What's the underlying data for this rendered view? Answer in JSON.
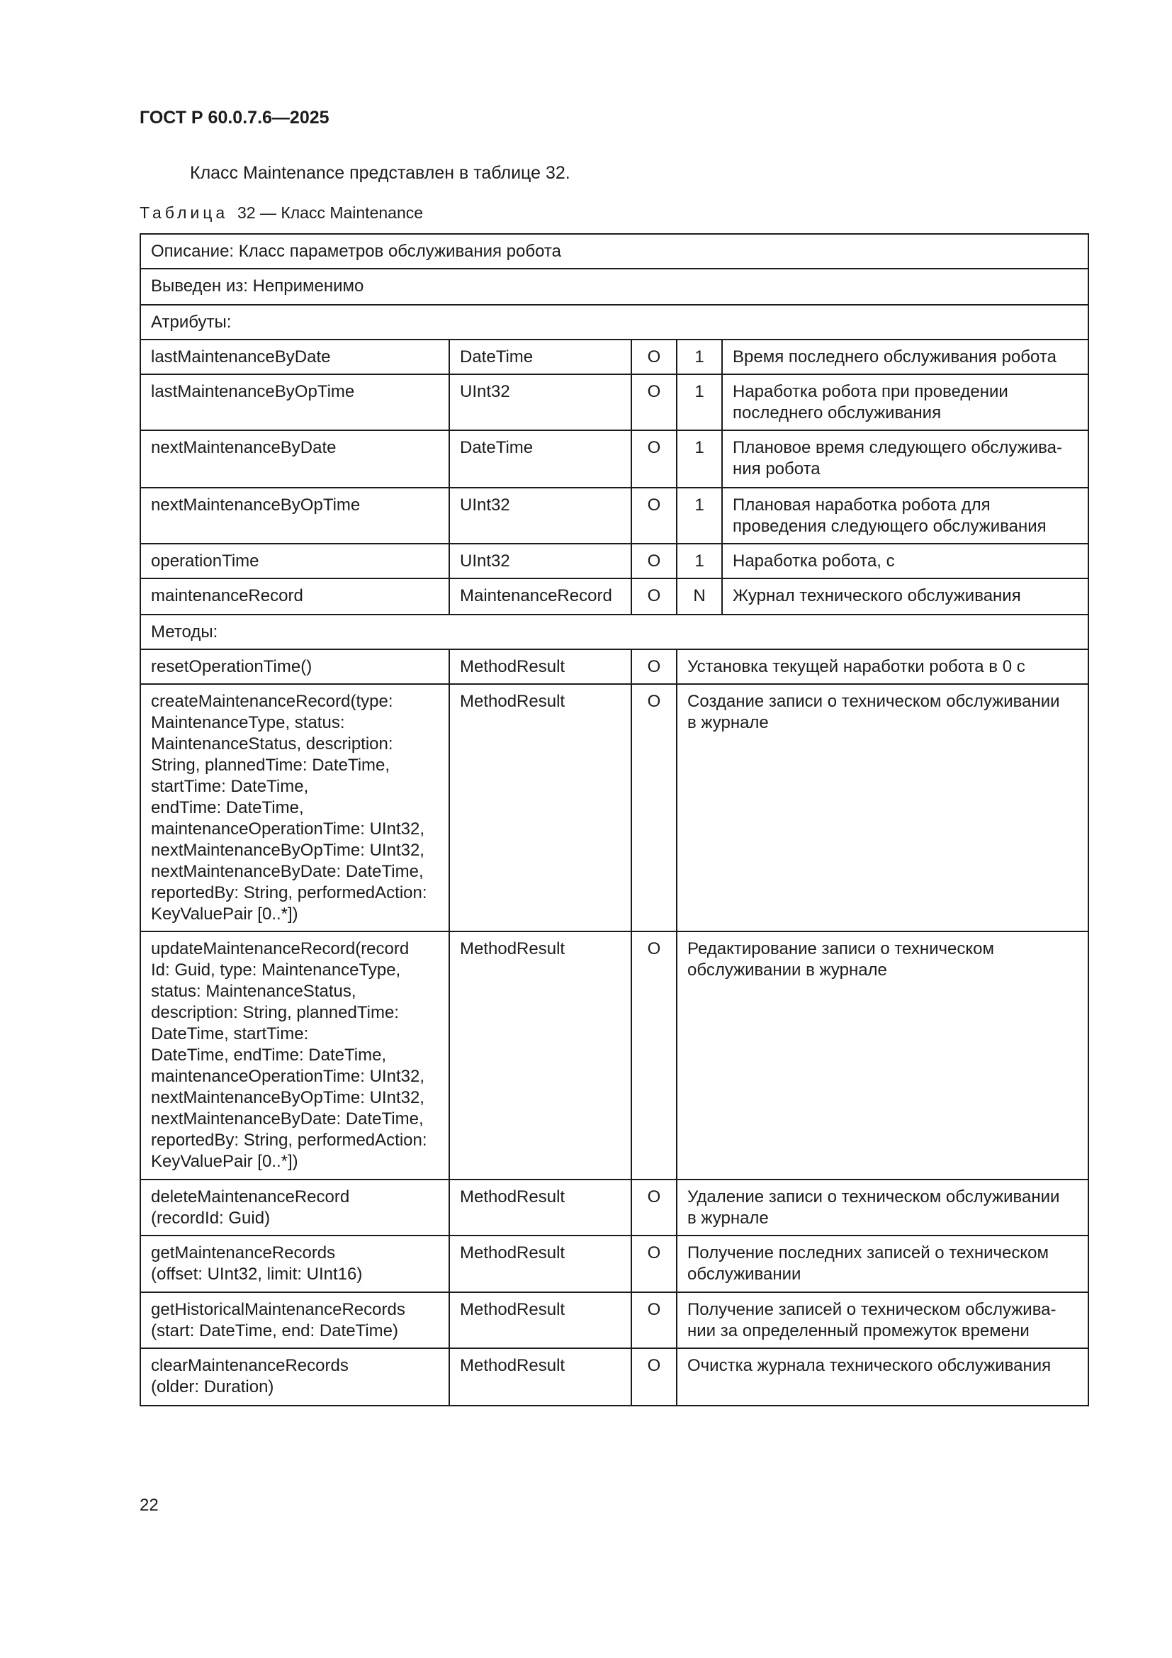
{
  "header": {
    "standard": "ГОСТ Р 60.0.7.6—2025"
  },
  "intro": "Класс Maintenance представлен в таблице 32.",
  "caption": {
    "prefix": "Таблица",
    "rest": "32 — Класс Maintenance"
  },
  "table": {
    "description": "Описание: Класс параметров обслуживания робота",
    "derived_from": "Выведен из: Неприменимо",
    "attributes_label": "Атрибуты:",
    "attributes": [
      {
        "name": "lastMaintenanceByDate",
        "type": "DateTime",
        "opt": "O",
        "mult": "1",
        "desc": "Время последнего обслуживания робота"
      },
      {
        "name": "lastMaintenanceByOpTime",
        "type": "UInt32",
        "opt": "O",
        "mult": "1",
        "desc": "Наработка робота при проведении\nпоследнего обслуживания"
      },
      {
        "name": "nextMaintenanceByDate",
        "type": "DateTime",
        "opt": "O",
        "mult": "1",
        "desc": "Плановое время следующего обслужива-\nния робота"
      },
      {
        "name": "nextMaintenanceByOpTime",
        "type": "UInt32",
        "opt": "O",
        "mult": "1",
        "desc": "Плановая наработка робота для\nпроведения следующего обслуживания"
      },
      {
        "name": "operationTime",
        "type": "UInt32",
        "opt": "O",
        "mult": "1",
        "desc": "Наработка робота, с"
      },
      {
        "name": "maintenanceRecord",
        "type": "MaintenanceRecord",
        "opt": "O",
        "mult": "N",
        "desc": "Журнал технического обслуживания"
      }
    ],
    "methods_label": "Методы:",
    "methods": [
      {
        "name": "resetOperationTime()",
        "type": "MethodResult",
        "opt": "O",
        "desc": "Установка текущей наработки робота в 0 с"
      },
      {
        "name": "createMaintenanceRecord(type:\nMaintenanceType, status:\nMaintenanceStatus, description:\nString, plannedTime: DateTime,\nstartTime: DateTime,\nendTime: DateTime,\nmaintenanceOperationTime: UInt32,\nnextMaintenanceByOpTime: UInt32,\nnextMaintenanceByDate: DateTime,\nreportedBy: String, performedAction:\nKeyValuePair [0..*])",
        "type": "MethodResult",
        "opt": "O",
        "desc": "Создание записи о техническом обслуживании\nв журнале"
      },
      {
        "name": "updateMaintenanceRecord(record\nId: Guid, type: MaintenanceType,\nstatus: MaintenanceStatus,\ndescription: String, plannedTime:\nDateTime, startTime:\nDateTime, endTime: DateTime,\nmaintenanceOperationTime: UInt32,\nnextMaintenanceByOpTime: UInt32,\nnextMaintenanceByDate: DateTime,\nreportedBy: String, performedAction:\nKeyValuePair [0..*])",
        "type": "MethodResult",
        "opt": "O",
        "desc": "Редактирование записи о техническом\nобслуживании в журнале"
      },
      {
        "name": "deleteMaintenanceRecord\n(recordId: Guid)",
        "type": "MethodResult",
        "opt": "O",
        "desc": "Удаление записи о техническом обслуживании\nв журнале"
      },
      {
        "name": "getMaintenanceRecords\n(offset: UInt32, limit: UInt16)",
        "type": "MethodResult",
        "opt": "O",
        "desc": "Получение последних записей о техническом\nобслуживании"
      },
      {
        "name": "getHistoricalMaintenanceRecords\n(start: DateTime, end: DateTime)",
        "type": "MethodResult",
        "opt": "O",
        "desc": "Получение записей о техническом обслужива-\nнии за определенный промежуток времени"
      },
      {
        "name": "clearMaintenanceRecords\n(older: Duration)",
        "type": "MethodResult",
        "opt": "O",
        "desc": "Очистка журнала технического обслуживания"
      }
    ]
  },
  "page_number": "22"
}
